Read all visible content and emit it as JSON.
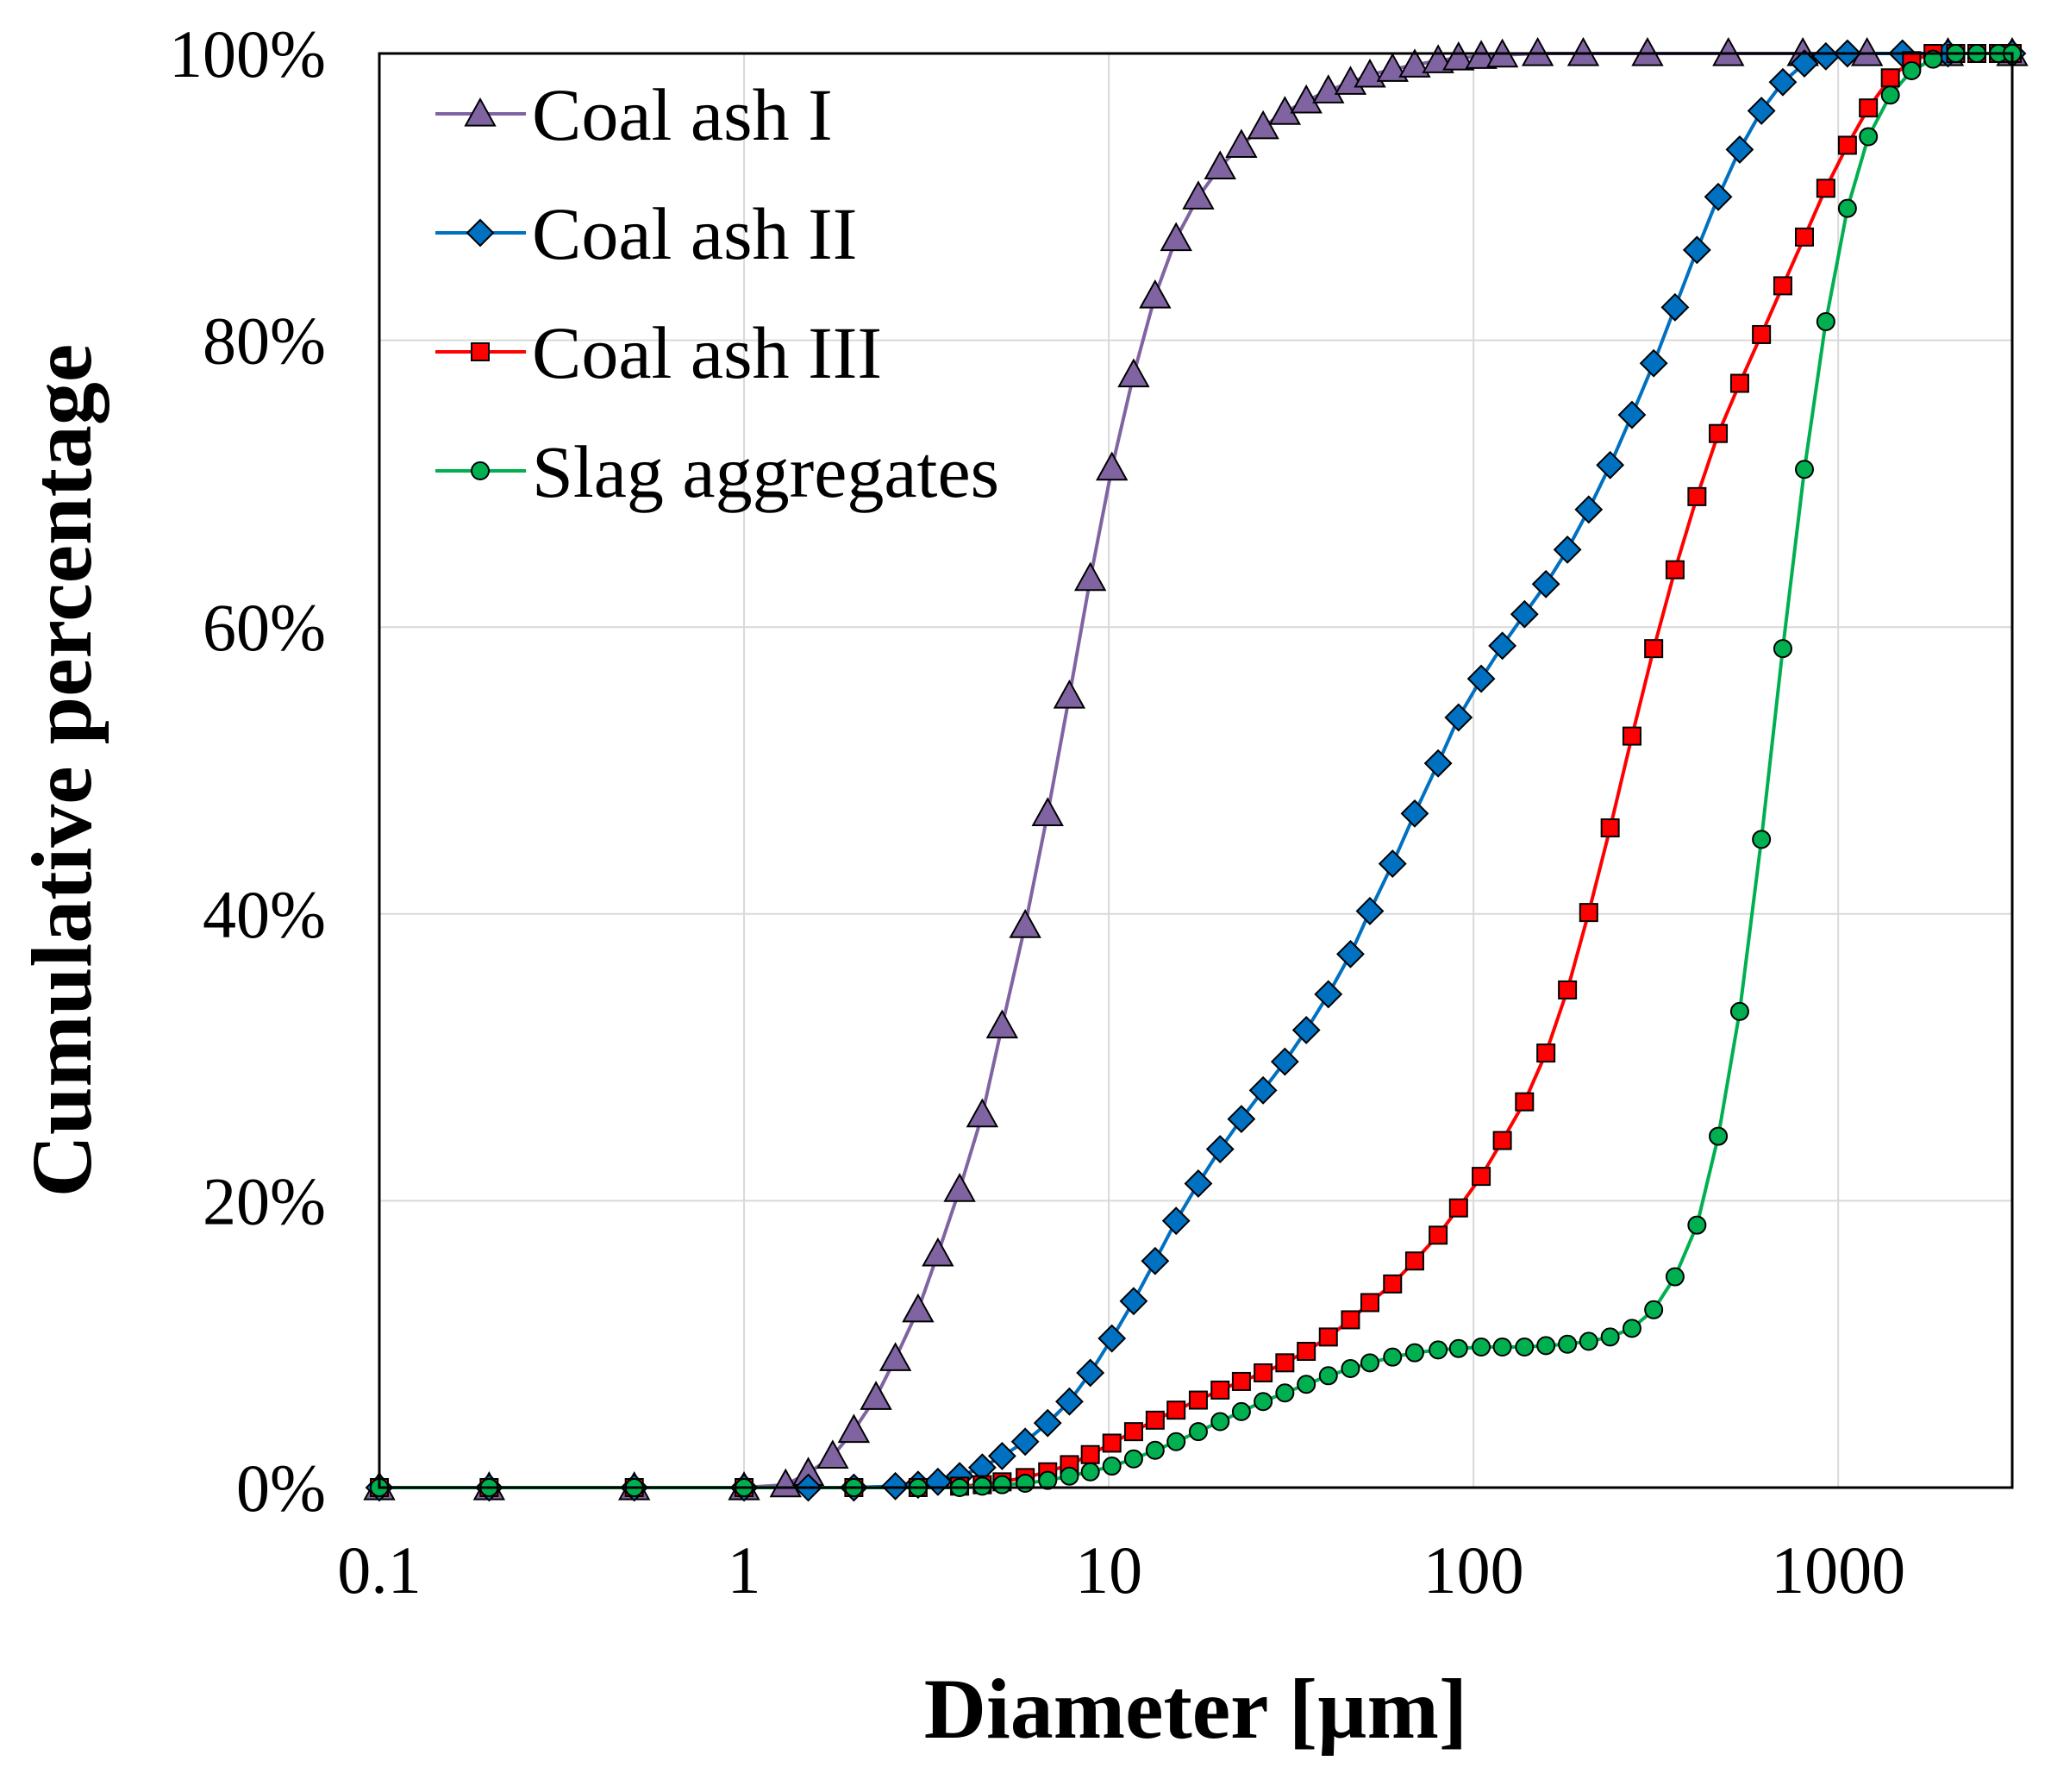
{
  "chart_data": {
    "type": "line",
    "title": "",
    "xlabel": "Diameter [µm]",
    "ylabel": "Cumulative percentage",
    "xscale": "log",
    "xlim": [
      0.1,
      3000
    ],
    "ylim": [
      0,
      100
    ],
    "grid": true,
    "legend_position": "top-left",
    "x_ticks": [
      {
        "value": 0.1,
        "label": "0.1"
      },
      {
        "value": 1,
        "label": "1"
      },
      {
        "value": 10,
        "label": "10"
      },
      {
        "value": 100,
        "label": "100"
      },
      {
        "value": 1000,
        "label": "1000"
      }
    ],
    "y_ticks": [
      {
        "value": 0,
        "label": "0%"
      },
      {
        "value": 20,
        "label": "20%"
      },
      {
        "value": 40,
        "label": "40%"
      },
      {
        "value": 60,
        "label": "60%"
      },
      {
        "value": 80,
        "label": "80%"
      },
      {
        "value": 100,
        "label": "100%"
      }
    ],
    "series": [
      {
        "name": "Coal ash I",
        "color": "#8064a2",
        "marker": "triangle",
        "points": [
          [
            0.1,
            0
          ],
          [
            0.2,
            0
          ],
          [
            0.5,
            0
          ],
          [
            1.0,
            0
          ],
          [
            1.3,
            0.2
          ],
          [
            1.5,
            1.0
          ],
          [
            1.75,
            2.2
          ],
          [
            2.0,
            4.0
          ],
          [
            2.3,
            6.3
          ],
          [
            2.6,
            9.0
          ],
          [
            3.0,
            12.4
          ],
          [
            3.4,
            16.3
          ],
          [
            3.9,
            20.8
          ],
          [
            4.5,
            26.0
          ],
          [
            5.1,
            32.2
          ],
          [
            5.9,
            39.2
          ],
          [
            6.8,
            47.0
          ],
          [
            7.8,
            55.2
          ],
          [
            8.9,
            63.4
          ],
          [
            10.2,
            71.1
          ],
          [
            11.7,
            77.6
          ],
          [
            13.4,
            83.1
          ],
          [
            15.3,
            87.1
          ],
          [
            17.6,
            90.0
          ],
          [
            20.2,
            92.1
          ],
          [
            23.1,
            93.6
          ],
          [
            26.5,
            94.9
          ],
          [
            30.4,
            95.9
          ],
          [
            34.8,
            96.7
          ],
          [
            40,
            97.4
          ],
          [
            46,
            98.0
          ],
          [
            52,
            98.5
          ],
          [
            60,
            98.9
          ],
          [
            69,
            99.2
          ],
          [
            80,
            99.5
          ],
          [
            91,
            99.7
          ],
          [
            105,
            99.8
          ],
          [
            120,
            99.9
          ],
          [
            150,
            100
          ],
          [
            200,
            100
          ],
          [
            300,
            100
          ],
          [
            500,
            100
          ],
          [
            800,
            100
          ],
          [
            1200,
            100
          ],
          [
            2000,
            100
          ],
          [
            3000,
            100
          ]
        ]
      },
      {
        "name": "Coal ash II",
        "color": "#0070c0",
        "marker": "diamond",
        "points": [
          [
            0.1,
            0
          ],
          [
            0.2,
            0
          ],
          [
            0.5,
            0
          ],
          [
            1.0,
            0
          ],
          [
            1.5,
            0
          ],
          [
            2.0,
            0
          ],
          [
            2.6,
            0.1
          ],
          [
            3.0,
            0.2
          ],
          [
            3.4,
            0.4
          ],
          [
            3.9,
            0.8
          ],
          [
            4.5,
            1.4
          ],
          [
            5.1,
            2.2
          ],
          [
            5.9,
            3.2
          ],
          [
            6.8,
            4.5
          ],
          [
            7.8,
            6.0
          ],
          [
            8.9,
            8.0
          ],
          [
            10.2,
            10.4
          ],
          [
            11.7,
            13.0
          ],
          [
            13.4,
            15.8
          ],
          [
            15.3,
            18.6
          ],
          [
            17.6,
            21.2
          ],
          [
            20.2,
            23.6
          ],
          [
            23.1,
            25.7
          ],
          [
            26.5,
            27.7
          ],
          [
            30.4,
            29.7
          ],
          [
            34.8,
            31.9
          ],
          [
            40,
            34.4
          ],
          [
            46,
            37.2
          ],
          [
            52,
            40.2
          ],
          [
            60,
            43.5
          ],
          [
            69,
            47.0
          ],
          [
            80,
            50.5
          ],
          [
            91,
            53.7
          ],
          [
            105,
            56.4
          ],
          [
            120,
            58.7
          ],
          [
            138,
            60.9
          ],
          [
            158,
            63.0
          ],
          [
            181,
            65.4
          ],
          [
            207,
            68.2
          ],
          [
            237,
            71.3
          ],
          [
            272,
            74.8
          ],
          [
            312,
            78.4
          ],
          [
            357,
            82.3
          ],
          [
            410,
            86.3
          ],
          [
            469,
            90.0
          ],
          [
            537,
            93.3
          ],
          [
            616,
            96.0
          ],
          [
            705,
            98.0
          ],
          [
            808,
            99.3
          ],
          [
            925,
            99.8
          ],
          [
            1060,
            100
          ],
          [
            1500,
            100
          ],
          [
            2000,
            100
          ],
          [
            3000,
            100
          ]
        ]
      },
      {
        "name": "Coal ash III",
        "color": "#ff0000",
        "marker": "square",
        "points": [
          [
            0.1,
            0
          ],
          [
            0.2,
            0
          ],
          [
            0.5,
            0
          ],
          [
            1.0,
            0
          ],
          [
            2.0,
            0
          ],
          [
            3.0,
            0
          ],
          [
            3.9,
            0.1
          ],
          [
            4.5,
            0.2
          ],
          [
            5.1,
            0.4
          ],
          [
            5.9,
            0.7
          ],
          [
            6.8,
            1.1
          ],
          [
            7.8,
            1.6
          ],
          [
            8.9,
            2.3
          ],
          [
            10.2,
            3.1
          ],
          [
            11.7,
            3.9
          ],
          [
            13.4,
            4.7
          ],
          [
            15.3,
            5.4
          ],
          [
            17.6,
            6.1
          ],
          [
            20.2,
            6.8
          ],
          [
            23.1,
            7.4
          ],
          [
            26.5,
            8.0
          ],
          [
            30.4,
            8.7
          ],
          [
            34.8,
            9.5
          ],
          [
            40,
            10.5
          ],
          [
            46,
            11.7
          ],
          [
            52,
            12.9
          ],
          [
            60,
            14.2
          ],
          [
            69,
            15.8
          ],
          [
            80,
            17.6
          ],
          [
            91,
            19.5
          ],
          [
            105,
            21.7
          ],
          [
            120,
            24.2
          ],
          [
            138,
            26.9
          ],
          [
            158,
            30.3
          ],
          [
            181,
            34.7
          ],
          [
            207,
            40.1
          ],
          [
            237,
            46.0
          ],
          [
            272,
            52.4
          ],
          [
            312,
            58.5
          ],
          [
            357,
            64.0
          ],
          [
            410,
            69.1
          ],
          [
            469,
            73.5
          ],
          [
            537,
            77.0
          ],
          [
            616,
            80.4
          ],
          [
            705,
            83.8
          ],
          [
            808,
            87.2
          ],
          [
            925,
            90.6
          ],
          [
            1060,
            93.6
          ],
          [
            1210,
            96.2
          ],
          [
            1390,
            98.3
          ],
          [
            1590,
            99.5
          ],
          [
            1820,
            100
          ],
          [
            2100,
            100
          ],
          [
            2400,
            100
          ],
          [
            2750,
            100
          ],
          [
            3000,
            100
          ]
        ]
      },
      {
        "name": "Slag aggregates",
        "color": "#00b050",
        "marker": "circle",
        "points": [
          [
            0.1,
            0
          ],
          [
            0.2,
            0
          ],
          [
            0.5,
            0
          ],
          [
            1.0,
            0
          ],
          [
            2.0,
            0
          ],
          [
            3.0,
            0
          ],
          [
            3.9,
            0
          ],
          [
            4.5,
            0.1
          ],
          [
            5.1,
            0.2
          ],
          [
            5.9,
            0.3
          ],
          [
            6.8,
            0.5
          ],
          [
            7.8,
            0.8
          ],
          [
            8.9,
            1.1
          ],
          [
            10.2,
            1.5
          ],
          [
            11.7,
            2.0
          ],
          [
            13.4,
            2.6
          ],
          [
            15.3,
            3.2
          ],
          [
            17.6,
            3.9
          ],
          [
            20.2,
            4.6
          ],
          [
            23.1,
            5.3
          ],
          [
            26.5,
            6.0
          ],
          [
            30.4,
            6.6
          ],
          [
            34.8,
            7.2
          ],
          [
            40,
            7.8
          ],
          [
            46,
            8.3
          ],
          [
            52,
            8.7
          ],
          [
            60,
            9.1
          ],
          [
            69,
            9.4
          ],
          [
            80,
            9.6
          ],
          [
            91,
            9.7
          ],
          [
            105,
            9.8
          ],
          [
            120,
            9.8
          ],
          [
            138,
            9.8
          ],
          [
            158,
            9.9
          ],
          [
            181,
            10.0
          ],
          [
            207,
            10.2
          ],
          [
            237,
            10.5
          ],
          [
            272,
            11.1
          ],
          [
            312,
            12.4
          ],
          [
            357,
            14.7
          ],
          [
            410,
            18.3
          ],
          [
            469,
            24.5
          ],
          [
            537,
            33.2
          ],
          [
            616,
            45.2
          ],
          [
            705,
            58.5
          ],
          [
            808,
            71.0
          ],
          [
            925,
            81.3
          ],
          [
            1060,
            89.2
          ],
          [
            1210,
            94.2
          ],
          [
            1390,
            97.1
          ],
          [
            1590,
            98.8
          ],
          [
            1820,
            99.6
          ],
          [
            2100,
            100
          ],
          [
            2400,
            100
          ],
          [
            2750,
            100
          ],
          [
            3000,
            100
          ]
        ]
      }
    ]
  }
}
